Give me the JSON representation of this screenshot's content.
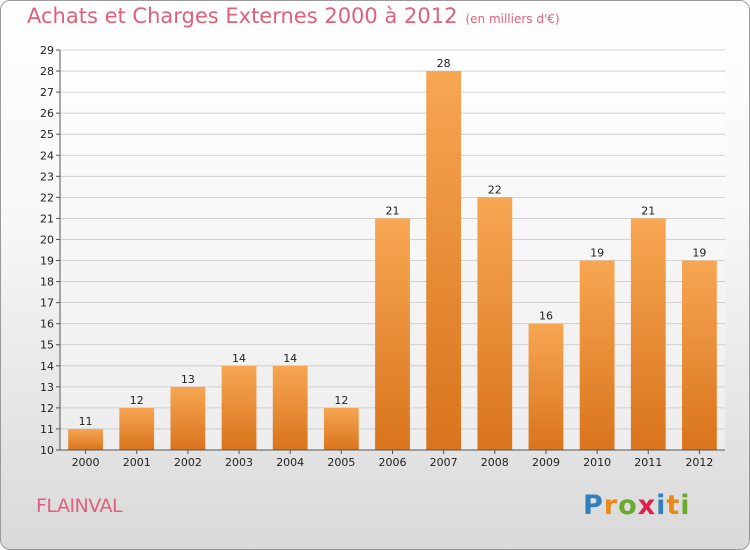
{
  "title": "Achats et Charges Externes 2000 à 2012",
  "subtitle": "(en milliers d'€)",
  "commune": "FLAINVAL",
  "logo": {
    "letters": [
      "P",
      "r",
      "o",
      "x",
      "i",
      "t",
      "i"
    ],
    "colors": [
      "#2f7fc1",
      "#e88a1a",
      "#6aab2e",
      "#e0204a",
      "#2f7fc1",
      "#e88a1a",
      "#6aab2e"
    ]
  },
  "colors": {
    "title": "#e0607a",
    "bar_top": "#f7a652",
    "bar_bottom": "#d9741c"
  },
  "chart_data": {
    "type": "bar",
    "categories": [
      "2000",
      "2001",
      "2002",
      "2003",
      "2004",
      "2005",
      "2006",
      "2007",
      "2008",
      "2009",
      "2010",
      "2011",
      "2012"
    ],
    "values": [
      11,
      12,
      13,
      14,
      14,
      12,
      21,
      28,
      22,
      16,
      19,
      21,
      19
    ],
    "ylim": [
      10,
      29
    ],
    "yticks": [
      10,
      11,
      12,
      13,
      14,
      15,
      16,
      17,
      18,
      19,
      20,
      21,
      22,
      23,
      24,
      25,
      26,
      27,
      28,
      29
    ],
    "grid": true,
    "xlabel": "",
    "ylabel": ""
  }
}
